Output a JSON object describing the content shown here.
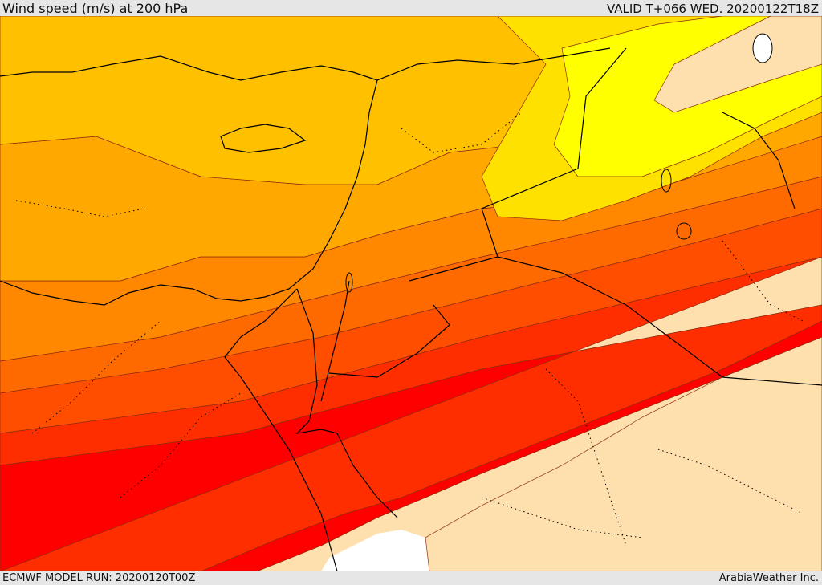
{
  "header": {
    "title": "Wind speed (m/s) at 200 hPa",
    "valid_time": "VALID T+066 WED. 20200122T18Z"
  },
  "footer": {
    "model_run": "ECMWF MODEL RUN: 20200120T00Z",
    "provider": "ArabiaWeather Inc."
  },
  "map": {
    "field": "wind speed",
    "level": "200 hPa",
    "units": "m/s",
    "region": "Eastern Mediterranean / Middle East",
    "colors": {
      "land_below_threshold": "#fde0ad",
      "band_1": "#ffff00",
      "band_2": "#ffe100",
      "band_3": "#ffc000",
      "band_4": "#ffa800",
      "band_5": "#ff8800",
      "band_6": "#ff6a00",
      "band_7": "#ff4e00",
      "band_8": "#ff2e00",
      "band_9": "#ff0000",
      "no_data": "#ffffff"
    }
  }
}
